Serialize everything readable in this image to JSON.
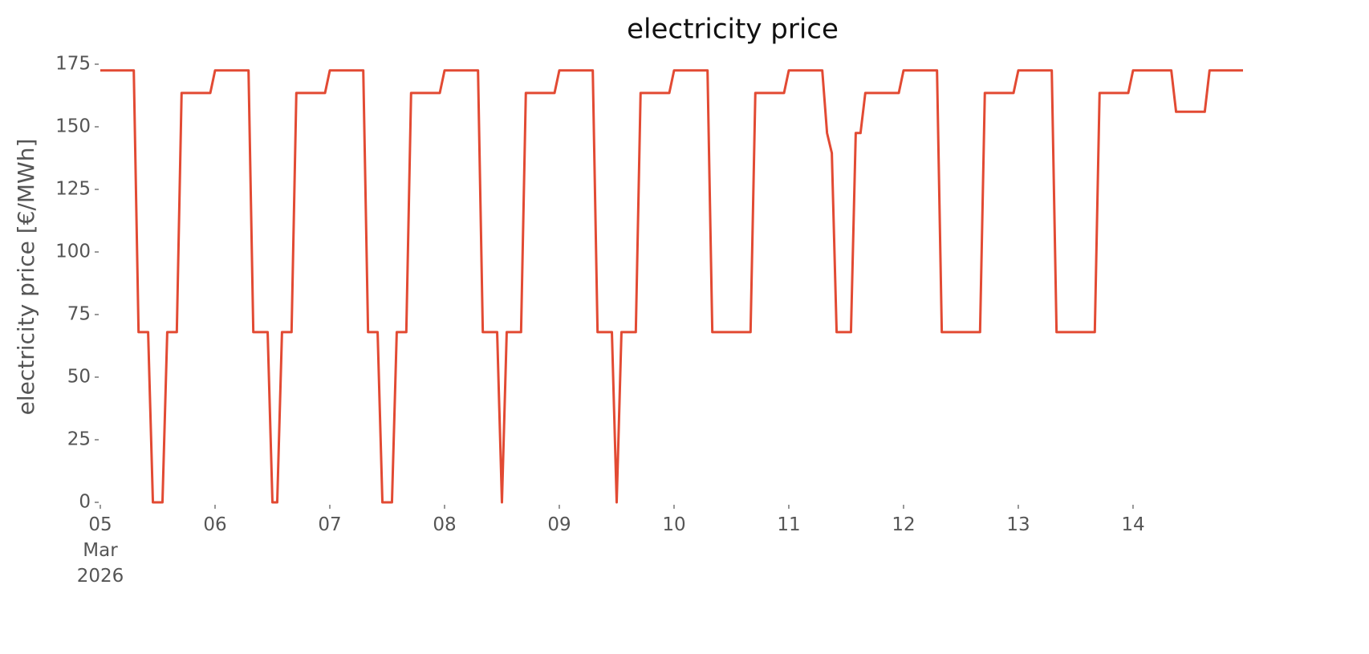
{
  "chart_data": {
    "type": "line",
    "title": "electricity price",
    "ylabel": "electricity price [€/MWh]",
    "x": [
      0,
      7,
      8,
      10,
      11,
      13,
      14,
      16,
      17,
      23,
      24,
      31,
      32,
      35,
      36,
      37,
      38,
      40,
      41,
      47,
      48,
      55,
      56,
      58,
      59,
      61,
      62,
      64,
      65,
      71,
      72,
      79,
      80,
      83,
      84,
      85,
      88,
      89,
      95,
      96,
      103,
      104,
      107,
      108,
      109,
      112,
      113,
      119,
      120,
      127,
      128,
      136,
      137,
      143,
      144,
      151,
      152,
      153,
      154,
      157,
      158,
      159,
      160,
      167,
      168,
      175,
      176,
      184,
      185,
      191,
      192,
      199,
      200,
      208,
      209,
      215,
      216,
      224,
      225,
      231,
      232,
      239
    ],
    "series": [
      {
        "name": "electricity price",
        "color": "#e24a33",
        "values": [
          172.5,
          172.5,
          68,
          68,
          0,
          0,
          68,
          68,
          163.5,
          163.5,
          172.5,
          172.5,
          68,
          68,
          0,
          0,
          68,
          68,
          163.5,
          163.5,
          172.5,
          172.5,
          68,
          68,
          0,
          0,
          68,
          68,
          163.5,
          163.5,
          172.5,
          172.5,
          68,
          68,
          0,
          68,
          68,
          163.5,
          163.5,
          172.5,
          172.5,
          68,
          68,
          0,
          68,
          68,
          163.5,
          163.5,
          172.5,
          172.5,
          68,
          68,
          163.5,
          163.5,
          172.5,
          172.5,
          147.5,
          139.5,
          68,
          68,
          147.5,
          147.5,
          163.5,
          163.5,
          172.5,
          172.5,
          68,
          68,
          163.5,
          163.5,
          172.5,
          172.5,
          68,
          68,
          163.5,
          163.5,
          172.5,
          172.5,
          156,
          156,
          172.5,
          172.5
        ]
      }
    ],
    "xlim": [
      0,
      239
    ],
    "xticks": [
      {
        "value": 0,
        "label": "05\nMar\n2026"
      },
      {
        "value": 24,
        "label": "06"
      },
      {
        "value": 48,
        "label": "07"
      },
      {
        "value": 72,
        "label": "08"
      },
      {
        "value": 96,
        "label": "09"
      },
      {
        "value": 120,
        "label": "10"
      },
      {
        "value": 144,
        "label": "11"
      },
      {
        "value": 168,
        "label": "12"
      },
      {
        "value": 192,
        "label": "13"
      },
      {
        "value": 216,
        "label": "14"
      }
    ],
    "ylim": [
      0,
      175
    ],
    "yticks": [
      0,
      25,
      50,
      75,
      100,
      125,
      150,
      175
    ]
  }
}
